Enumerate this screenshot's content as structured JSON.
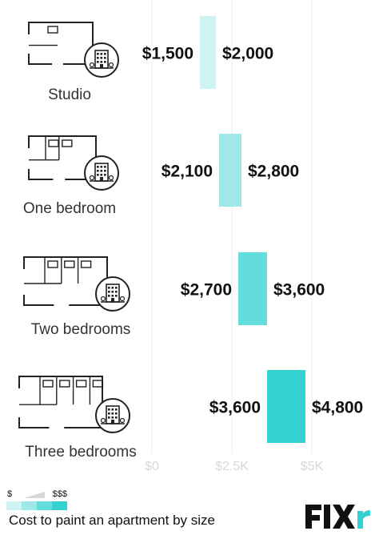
{
  "chart_data": {
    "type": "bar",
    "orientation": "horizontal-range",
    "categories": [
      "Studio",
      "One bedroom",
      "Two bedrooms",
      "Three bedrooms"
    ],
    "series": [
      {
        "low": [
          1500,
          2100,
          2700,
          3600
        ],
        "high": [
          2000,
          2800,
          3600,
          4800
        ],
        "low_labels": [
          "$1,500",
          "$2,100",
          "$2,700",
          "$3,600"
        ],
        "high_labels": [
          "$2,000",
          "$2,800",
          "$3,600",
          "$4,800"
        ],
        "colors": [
          "#cdf3f3",
          "#9ee8e8",
          "#63dcdc",
          "#33d1cf"
        ]
      }
    ],
    "xlim": [
      0,
      5000
    ],
    "ticks": [
      0,
      2500,
      5000
    ],
    "tick_labels": [
      "$0",
      "$2.5K",
      "$5K"
    ],
    "grid": true,
    "icons": [
      "floor-plan-icon",
      "apartment-building-icon"
    ]
  },
  "legend": {
    "low_label": "$",
    "high_label": "$$$",
    "swatch_colors": [
      "#cdf3f3",
      "#9ee8e8",
      "#63dcdc",
      "#33d1cf"
    ]
  },
  "caption": "Cost to paint an apartment by size",
  "logo": {
    "text": "Fixr",
    "color": "#111111",
    "accent": "#33d1cf"
  }
}
